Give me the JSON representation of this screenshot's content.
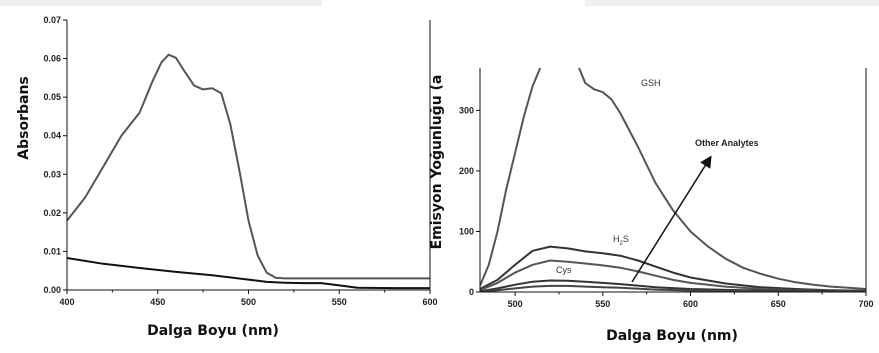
{
  "chart_data": [
    {
      "type": "line",
      "xlabel": "Dalga Boyu (nm)",
      "ylabel": "Absorbans",
      "xlim": [
        400,
        600
      ],
      "ylim": [
        0,
        0.07
      ],
      "xticks": [
        "400",
        "450",
        "500",
        "550",
        "600"
      ],
      "yticks": [
        "0.00",
        "0.01",
        "0.02",
        "0.03",
        "0.04",
        "0.05",
        "0.06",
        "0.07"
      ],
      "series": [
        {
          "color": "#555555",
          "points": [
            [
              400,
              0.018
            ],
            [
              410,
              0.024
            ],
            [
              420,
              0.032
            ],
            [
              430,
              0.04
            ],
            [
              440,
              0.046
            ],
            [
              447,
              0.054
            ],
            [
              452,
              0.059
            ],
            [
              456,
              0.061
            ],
            [
              460,
              0.0602
            ],
            [
              465,
              0.0565
            ],
            [
              470,
              0.053
            ],
            [
              475,
              0.052
            ],
            [
              480,
              0.0523
            ],
            [
              485,
              0.051
            ],
            [
              490,
              0.043
            ],
            [
              495,
              0.031
            ],
            [
              500,
              0.018
            ],
            [
              505,
              0.009
            ],
            [
              510,
              0.0045
            ],
            [
              515,
              0.0032
            ],
            [
              520,
              0.003
            ],
            [
              540,
              0.003
            ],
            [
              560,
              0.003
            ],
            [
              600,
              0.003
            ]
          ]
        },
        {
          "color": "#111111",
          "points": [
            [
              400,
              0.0083
            ],
            [
              420,
              0.0068
            ],
            [
              440,
              0.0057
            ],
            [
              460,
              0.0047
            ],
            [
              480,
              0.0038
            ],
            [
              500,
              0.0027
            ],
            [
              510,
              0.0021
            ],
            [
              520,
              0.0019
            ],
            [
              530,
              0.0018
            ],
            [
              540,
              0.0018
            ],
            [
              550,
              0.0012
            ],
            [
              560,
              0.0006
            ],
            [
              580,
              0.0005
            ],
            [
              600,
              0.0005
            ]
          ]
        }
      ]
    },
    {
      "type": "line",
      "xlabel": "Dalga Boyu (nm)",
      "ylabel": "Emisyon Yoğunluğu (a",
      "xlim": [
        480,
        700
      ],
      "ylim": [
        0,
        370
      ],
      "xticks": [
        "500",
        "550",
        "600",
        "650",
        "700"
      ],
      "yticks": [
        "0",
        "100",
        "200",
        "300"
      ],
      "annotations": {
        "gsh": "GSH",
        "h2s_main": "H",
        "h2s_sub": "2",
        "h2s_tail": "S",
        "cys": "Cys",
        "other": "Other Analytes"
      },
      "series": [
        {
          "name": "GSH",
          "color": "#555555",
          "points": [
            [
              480,
              10
            ],
            [
              485,
              45
            ],
            [
              490,
              100
            ],
            [
              495,
              170
            ],
            [
              500,
              230
            ],
            [
              505,
              290
            ],
            [
              510,
              340
            ],
            [
              515,
              375
            ],
            [
              520,
              395
            ],
            [
              530,
              400
            ],
            [
              535,
              380
            ],
            [
              540,
              345
            ],
            [
              545,
              335
            ],
            [
              550,
              330
            ],
            [
              555,
              318
            ],
            [
              560,
              295
            ],
            [
              570,
              240
            ],
            [
              580,
              180
            ],
            [
              590,
              135
            ],
            [
              600,
              100
            ],
            [
              610,
              75
            ],
            [
              620,
              55
            ],
            [
              630,
              40
            ],
            [
              640,
              30
            ],
            [
              650,
              22
            ],
            [
              660,
              16
            ],
            [
              670,
              12
            ],
            [
              680,
              9
            ],
            [
              690,
              7
            ],
            [
              700,
              5
            ]
          ]
        },
        {
          "name": "H2S",
          "color": "#333333",
          "points": [
            [
              480,
              5
            ],
            [
              490,
              20
            ],
            [
              500,
              45
            ],
            [
              510,
              68
            ],
            [
              520,
              75
            ],
            [
              530,
              72
            ],
            [
              540,
              67
            ],
            [
              550,
              64
            ],
            [
              560,
              60
            ],
            [
              570,
              52
            ],
            [
              580,
              42
            ],
            [
              590,
              32
            ],
            [
              600,
              24
            ],
            [
              620,
              14
            ],
            [
              640,
              8
            ],
            [
              660,
              5
            ],
            [
              680,
              3
            ],
            [
              700,
              2
            ]
          ]
        },
        {
          "color": "#555555",
          "points": [
            [
              480,
              3
            ],
            [
              490,
              15
            ],
            [
              500,
              32
            ],
            [
              510,
              45
            ],
            [
              520,
              52
            ],
            [
              530,
              50
            ],
            [
              540,
              47
            ],
            [
              550,
              44
            ],
            [
              560,
              40
            ],
            [
              570,
              34
            ],
            [
              580,
              27
            ],
            [
              590,
              20
            ],
            [
              600,
              15
            ],
            [
              620,
              9
            ],
            [
              640,
              5
            ],
            [
              660,
              3
            ],
            [
              680,
              2
            ],
            [
              700,
              1
            ]
          ]
        },
        {
          "name": "Cys",
          "color": "#333333",
          "points": [
            [
              480,
              1
            ],
            [
              490,
              6
            ],
            [
              500,
              12
            ],
            [
              510,
              17
            ],
            [
              520,
              19
            ],
            [
              530,
              18.5
            ],
            [
              540,
              17
            ],
            [
              550,
              15
            ],
            [
              560,
              13
            ],
            [
              580,
              8
            ],
            [
              600,
              5
            ],
            [
              630,
              3
            ],
            [
              660,
              2
            ],
            [
              700,
              1
            ]
          ]
        },
        {
          "color": "#444444",
          "points": [
            [
              480,
              0.5
            ],
            [
              490,
              3
            ],
            [
              500,
              6
            ],
            [
              510,
              9
            ],
            [
              520,
              10
            ],
            [
              530,
              10
            ],
            [
              540,
              9
            ],
            [
              550,
              8
            ],
            [
              560,
              7
            ],
            [
              580,
              4
            ],
            [
              600,
              2.5
            ],
            [
              650,
              1
            ],
            [
              700,
              0.5
            ]
          ]
        }
      ]
    }
  ]
}
